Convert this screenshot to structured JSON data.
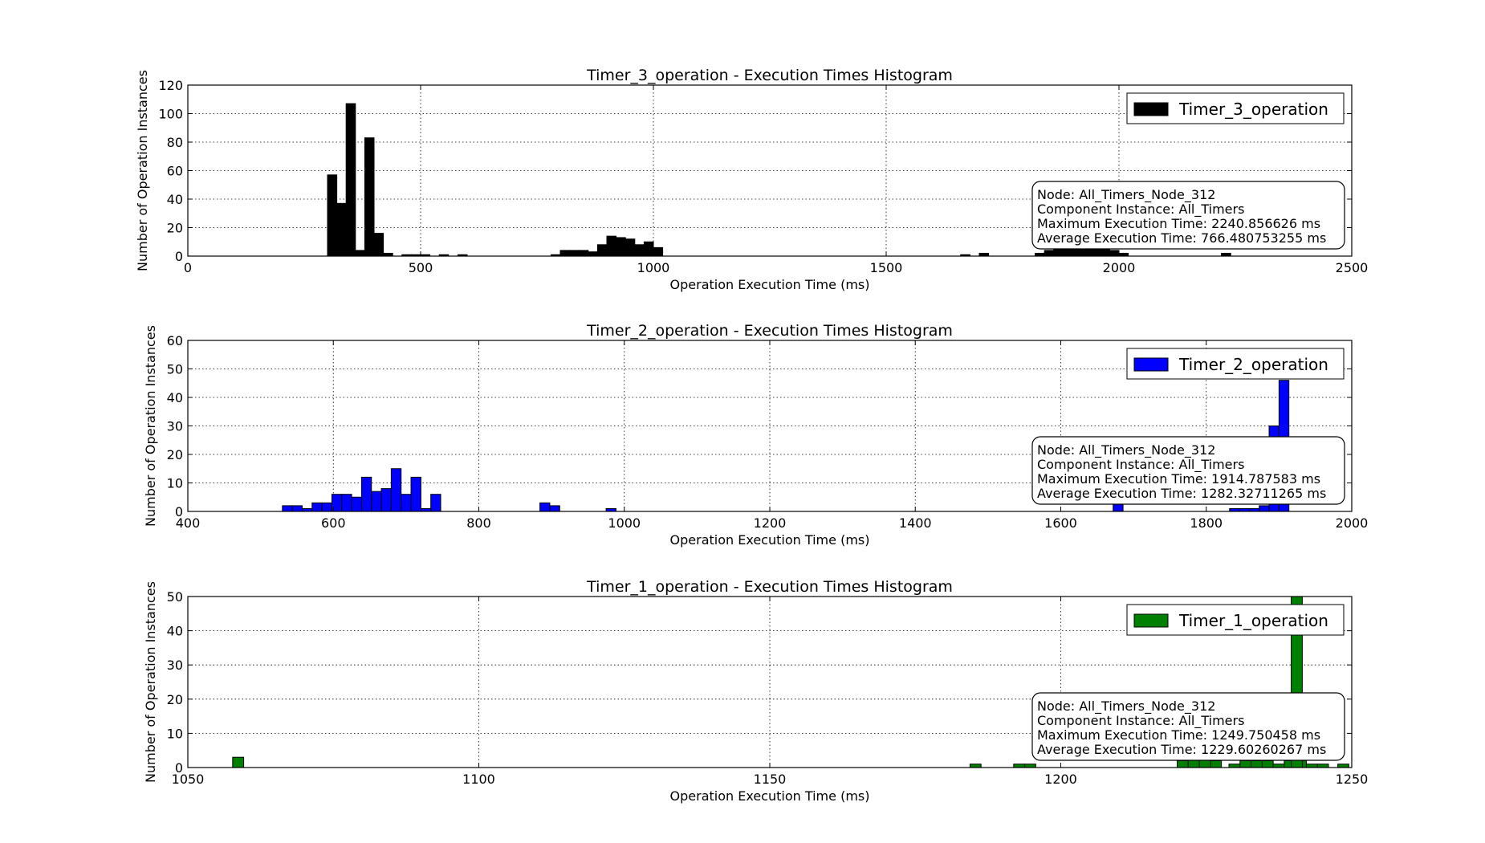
{
  "chart_data": [
    {
      "type": "bar",
      "title": "Timer_3_operation - Execution Times Histogram",
      "xlabel": "Operation Execution Time (ms)",
      "ylabel": "Number of Operation Instances",
      "xlim": [
        0,
        2500
      ],
      "ylim": [
        0,
        120
      ],
      "xticks": [
        0,
        500,
        1000,
        1500,
        2000,
        2500
      ],
      "yticks": [
        0,
        20,
        40,
        60,
        80,
        100,
        120
      ],
      "grid": true,
      "legend_position": "top-right",
      "bin_width": 20,
      "series": [
        {
          "name": "Timer_3_operation",
          "color": "#000000",
          "bins": [
            [
              300,
              57
            ],
            [
              320,
              37
            ],
            [
              340,
              107
            ],
            [
              360,
              4
            ],
            [
              380,
              83
            ],
            [
              400,
              16
            ],
            [
              420,
              2
            ],
            [
              460,
              1
            ],
            [
              480,
              1
            ],
            [
              500,
              1
            ],
            [
              540,
              1
            ],
            [
              580,
              1
            ],
            [
              780,
              1
            ],
            [
              800,
              4
            ],
            [
              820,
              4
            ],
            [
              840,
              4
            ],
            [
              860,
              3
            ],
            [
              880,
              8
            ],
            [
              900,
              14
            ],
            [
              920,
              13
            ],
            [
              940,
              12
            ],
            [
              960,
              8
            ],
            [
              980,
              10
            ],
            [
              1000,
              6
            ],
            [
              1660,
              1
            ],
            [
              1700,
              2
            ],
            [
              1820,
              2
            ],
            [
              1840,
              4
            ],
            [
              1860,
              6
            ],
            [
              1880,
              6
            ],
            [
              1900,
              6
            ],
            [
              1920,
              6
            ],
            [
              1940,
              6
            ],
            [
              1960,
              6
            ],
            [
              1980,
              4
            ],
            [
              2000,
              2
            ],
            [
              2220,
              2
            ]
          ]
        }
      ],
      "annotation": [
        "Node: All_Timers_Node_312",
        "Component Instance: All_Timers",
        "Maximum Execution Time: 2240.856626 ms",
        "Average Execution Time: 766.480753255 ms"
      ]
    },
    {
      "type": "bar",
      "title": "Timer_2_operation - Execution Times Histogram",
      "xlabel": "Operation Execution Time (ms)",
      "ylabel": "Number of Operation Instances",
      "xlim": [
        400,
        2000
      ],
      "ylim": [
        0,
        60
      ],
      "xticks": [
        400,
        600,
        800,
        1000,
        1200,
        1400,
        1600,
        1800,
        2000
      ],
      "yticks": [
        0,
        10,
        20,
        30,
        40,
        50,
        60
      ],
      "grid": true,
      "legend_position": "top-right",
      "bin_width": 13.6,
      "series": [
        {
          "name": "Timer_2_operation",
          "color": "#0000ff",
          "bins": [
            [
              530,
              2
            ],
            [
              543.6,
              2
            ],
            [
              557.2,
              1
            ],
            [
              570.8,
              3
            ],
            [
              584.4,
              3
            ],
            [
              598,
              6
            ],
            [
              611.6,
              6
            ],
            [
              625.2,
              5
            ],
            [
              638.8,
              12
            ],
            [
              652.4,
              7
            ],
            [
              666,
              8
            ],
            [
              679.6,
              15
            ],
            [
              693.2,
              6
            ],
            [
              706.8,
              12
            ],
            [
              720.4,
              1
            ],
            [
              734,
              6
            ],
            [
              884,
              3
            ],
            [
              897.6,
              2
            ],
            [
              975,
              1
            ],
            [
              1672,
              4
            ],
            [
              1832,
              1
            ],
            [
              1845.6,
              1
            ],
            [
              1859.2,
              1
            ],
            [
              1872.8,
              2
            ],
            [
              1886.4,
              30
            ],
            [
              1900,
              46
            ]
          ]
        }
      ],
      "annotation": [
        "Node: All_Timers_Node_312",
        "Component Instance: All_Timers",
        "Maximum Execution Time: 1914.787583 ms",
        "Average Execution Time: 1282.32711265 ms"
      ]
    },
    {
      "type": "bar",
      "title": "Timer_1_operation - Execution Times Histogram",
      "xlabel": "Operation Execution Time (ms)",
      "ylabel": "Number of Operation Instances",
      "xlim": [
        1050,
        1250
      ],
      "ylim": [
        0,
        50
      ],
      "xticks": [
        1050,
        1100,
        1150,
        1200,
        1250
      ],
      "yticks": [
        0,
        10,
        20,
        30,
        40,
        50
      ],
      "grid": true,
      "legend_position": "top-right",
      "bin_width": 1.9,
      "series": [
        {
          "name": "Timer_1_operation",
          "color": "#008000",
          "bins": [
            [
              1057.7,
              3
            ],
            [
              1184.4,
              1
            ],
            [
              1191.9,
              1
            ],
            [
              1193.8,
              1
            ],
            [
              1220,
              2
            ],
            [
              1221.9,
              3
            ],
            [
              1223.8,
              3
            ],
            [
              1225.7,
              2
            ],
            [
              1228.9,
              1
            ],
            [
              1230.8,
              2
            ],
            [
              1232.7,
              2
            ],
            [
              1234.6,
              2
            ],
            [
              1236.5,
              1
            ],
            [
              1238.4,
              2
            ],
            [
              1240.3,
              2
            ],
            [
              1242.2,
              1
            ],
            [
              1244.1,
              1
            ],
            [
              1247.6,
              1
            ],
            [
              1239.6,
              50
            ]
          ]
        }
      ],
      "annotation": [
        "Node: All_Timers_Node_312",
        "Component Instance: All_Timers",
        "Maximum Execution Time: 1249.750458 ms",
        "Average Execution Time: 1229.60260267 ms"
      ]
    }
  ]
}
